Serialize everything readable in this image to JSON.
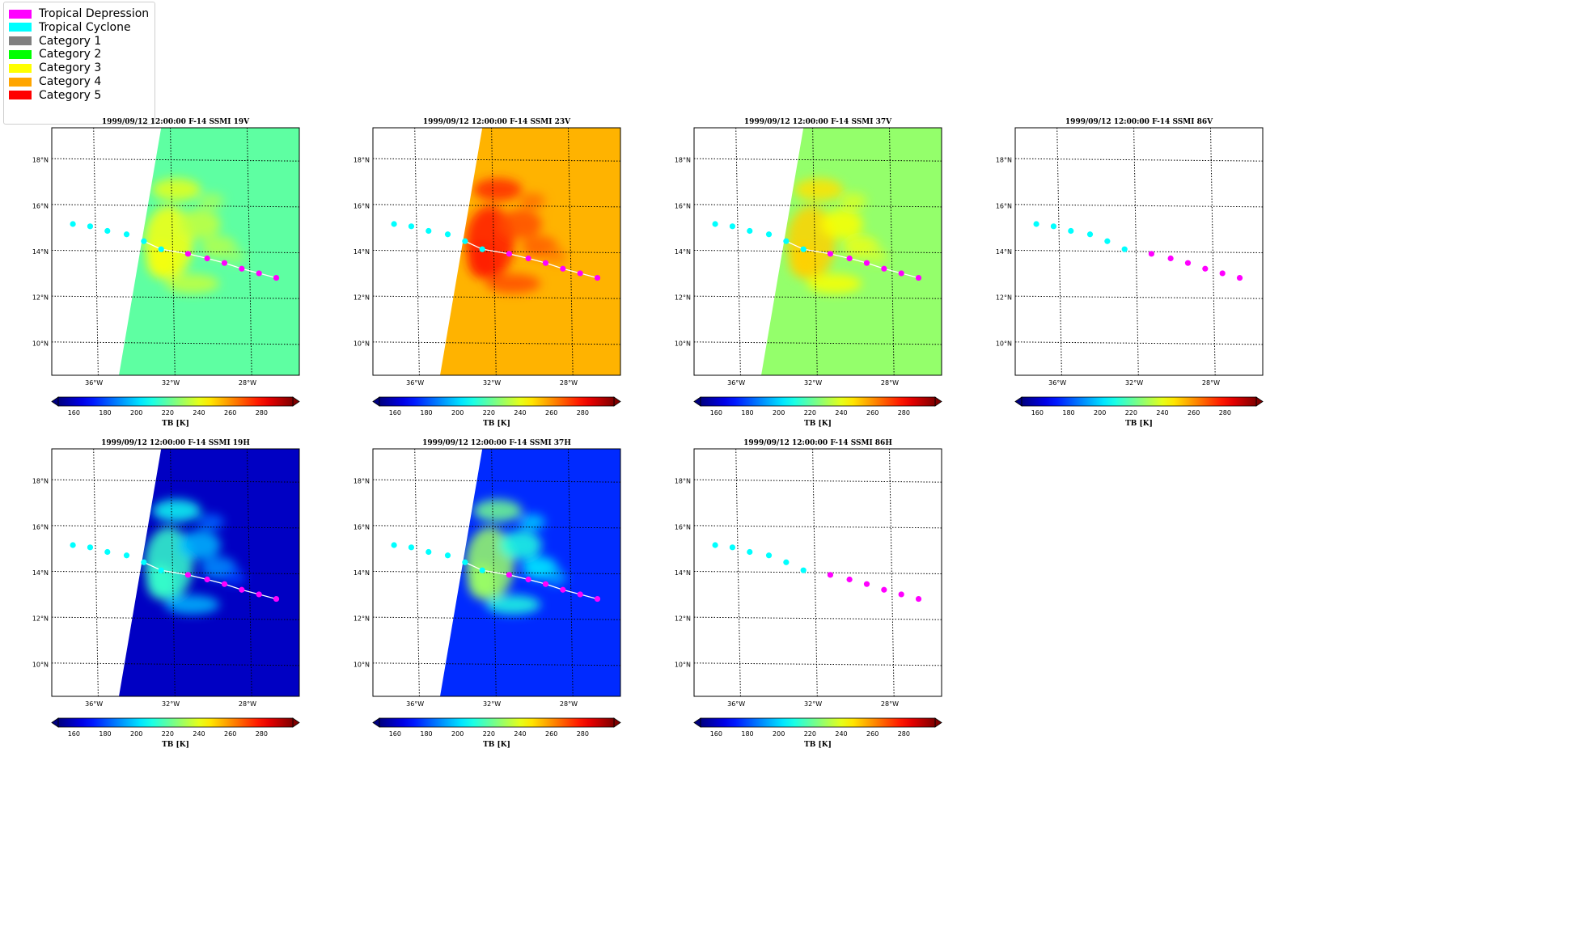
{
  "legend": {
    "items": [
      {
        "label": "Tropical Depression",
        "color": "#ff00ff"
      },
      {
        "label": "Tropical Cyclone",
        "color": "#00ffff"
      },
      {
        "label": "Category 1",
        "color": "#808080"
      },
      {
        "label": "Category 2",
        "color": "#00ff00"
      },
      {
        "label": "Category 3",
        "color": "#ffff00"
      },
      {
        "label": "Category 4",
        "color": "#ffa500"
      },
      {
        "label": "Category 5",
        "color": "#ff0000"
      }
    ]
  },
  "chart_data": [
    {
      "type": "map",
      "title": "1999/09/12 12:00:00  F-14 SSMI 19V",
      "swath_tb_level": 220,
      "xticks": [
        "36°W",
        "32°W",
        "28°W"
      ],
      "yticks": [
        "10°N",
        "12°N",
        "14°N",
        "16°N",
        "18°N"
      ],
      "colorbar": {
        "label": "TB [K]",
        "ticks": [
          160,
          180,
          200,
          220,
          240,
          260,
          280
        ],
        "range": [
          150,
          300
        ]
      }
    },
    {
      "type": "map",
      "title": "1999/09/12 12:00:00  F-14 SSMI 23V",
      "swath_tb_level": 255,
      "xticks": [
        "36°W",
        "32°W",
        "28°W"
      ],
      "yticks": [
        "10°N",
        "12°N",
        "14°N",
        "16°N",
        "18°N"
      ],
      "colorbar": {
        "label": "TB [K]",
        "ticks": [
          160,
          180,
          200,
          220,
          240,
          260,
          280
        ],
        "range": [
          150,
          300
        ]
      }
    },
    {
      "type": "map",
      "title": "1999/09/12 12:00:00  F-14 SSMI 37V",
      "swath_tb_level": 228,
      "xticks": [
        "36°W",
        "32°W",
        "28°W"
      ],
      "yticks": [
        "10°N",
        "12°N",
        "14°N",
        "16°N",
        "18°N"
      ],
      "colorbar": {
        "label": "TB [K]",
        "ticks": [
          160,
          180,
          200,
          220,
          240,
          260,
          280
        ],
        "range": [
          150,
          300
        ]
      }
    },
    {
      "type": "map",
      "title": "1999/09/12 12:00:00  F-14 SSMI 86V",
      "swath_tb_level": null,
      "xticks": [
        "36°W",
        "32°W",
        "28°W"
      ],
      "yticks": [
        "10°N",
        "12°N",
        "14°N",
        "16°N",
        "18°N"
      ],
      "colorbar": {
        "label": "TB [K]",
        "ticks": [
          160,
          180,
          200,
          220,
          240,
          260,
          280
        ],
        "range": [
          150,
          300
        ]
      }
    },
    {
      "type": "map",
      "title": "1999/09/12 12:00:00  F-14 SSMI 19H",
      "swath_tb_level": 160,
      "xticks": [
        "36°W",
        "32°W",
        "28°W"
      ],
      "yticks": [
        "10°N",
        "12°N",
        "14°N",
        "16°N",
        "18°N"
      ],
      "colorbar": {
        "label": "TB [K]",
        "ticks": [
          160,
          180,
          200,
          220,
          240,
          260,
          280
        ],
        "range": [
          150,
          300
        ]
      }
    },
    {
      "type": "map",
      "title": "1999/09/12 12:00:00  F-14 SSMI 37H",
      "swath_tb_level": 175,
      "xticks": [
        "36°W",
        "32°W",
        "28°W"
      ],
      "yticks": [
        "10°N",
        "12°N",
        "14°N",
        "16°N",
        "18°N"
      ],
      "colorbar": {
        "label": "TB [K]",
        "ticks": [
          160,
          180,
          200,
          220,
          240,
          260,
          280
        ],
        "range": [
          150,
          300
        ]
      }
    },
    {
      "type": "map",
      "title": "1999/09/12 12:00:00  F-14 SSMI 86H",
      "swath_tb_level": null,
      "xticks": [
        "36°W",
        "32°W",
        "28°W"
      ],
      "yticks": [
        "10°N",
        "12°N",
        "14°N",
        "16°N",
        "18°N"
      ],
      "colorbar": {
        "label": "TB [K]",
        "ticks": [
          160,
          180,
          200,
          220,
          240,
          260,
          280
        ],
        "range": [
          150,
          300
        ]
      }
    }
  ],
  "track": {
    "points": [
      {
        "lon": -37.2,
        "lat": 15.2,
        "class": "Tropical Cyclone"
      },
      {
        "lon": -36.3,
        "lat": 15.1,
        "class": "Tropical Cyclone"
      },
      {
        "lon": -35.4,
        "lat": 14.9,
        "class": "Tropical Cyclone"
      },
      {
        "lon": -34.4,
        "lat": 14.75,
        "class": "Tropical Cyclone"
      },
      {
        "lon": -33.5,
        "lat": 14.45,
        "class": "Tropical Cyclone"
      },
      {
        "lon": -32.6,
        "lat": 14.1,
        "class": "Tropical Cyclone"
      },
      {
        "lon": -31.2,
        "lat": 13.9,
        "class": "Tropical Depression"
      },
      {
        "lon": -30.2,
        "lat": 13.7,
        "class": "Tropical Depression"
      },
      {
        "lon": -29.3,
        "lat": 13.5,
        "class": "Tropical Depression"
      },
      {
        "lon": -28.4,
        "lat": 13.25,
        "class": "Tropical Depression"
      },
      {
        "lon": -27.5,
        "lat": 13.05,
        "class": "Tropical Depression"
      },
      {
        "lon": -26.6,
        "lat": 12.85,
        "class": "Tropical Depression"
      }
    ]
  }
}
